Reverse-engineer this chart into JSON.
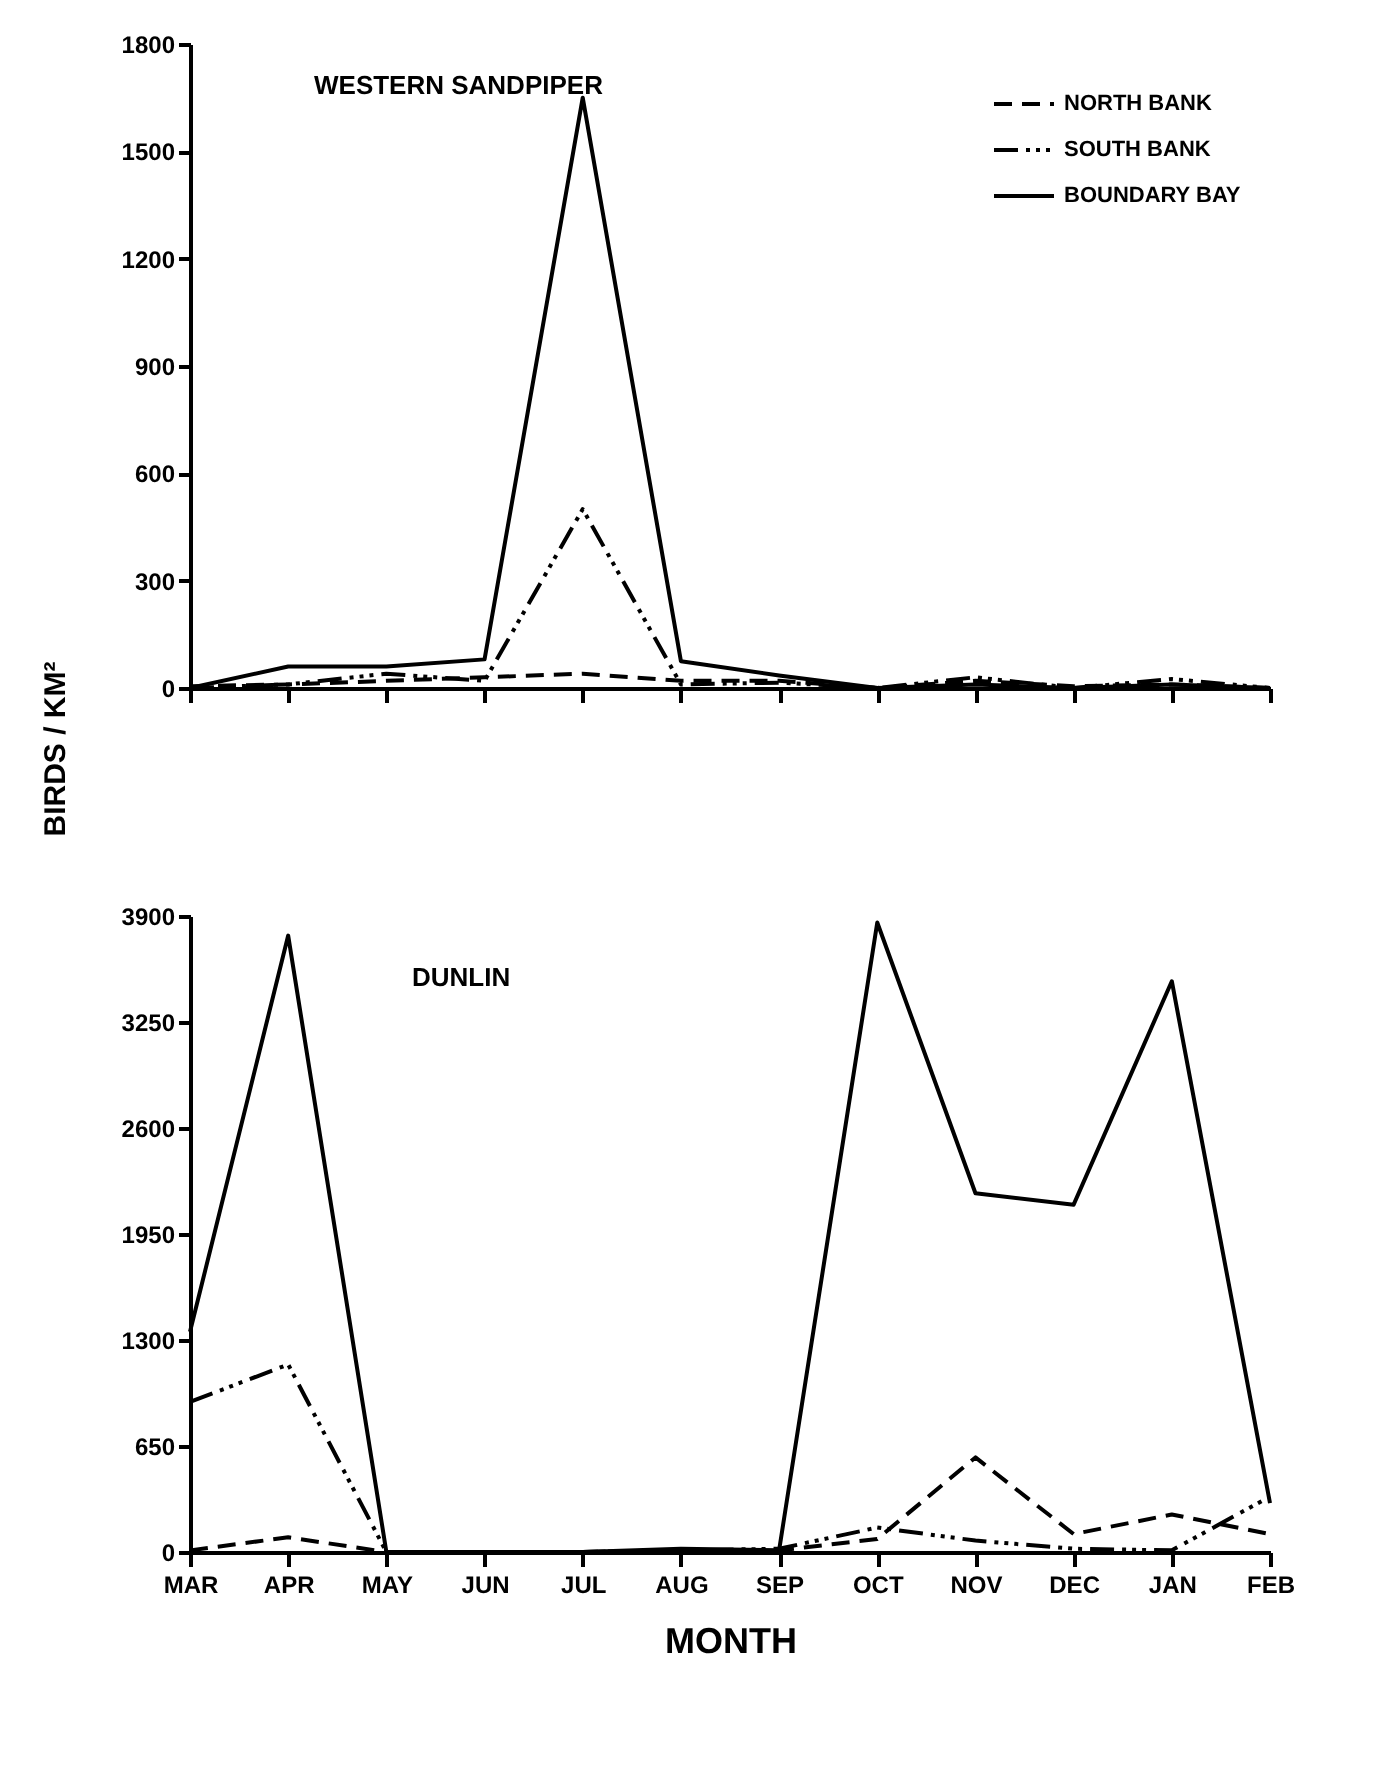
{
  "chart_data": [
    {
      "type": "line",
      "title": "WESTERN SANDPIPER",
      "ylabel": "BIRDS / KM²",
      "categories": [
        null,
        null,
        null,
        null,
        null,
        null,
        null,
        null,
        null,
        null,
        null,
        null
      ],
      "ylim": [
        0,
        1800
      ],
      "yticks": [
        0,
        300,
        600,
        900,
        1200,
        1500,
        1800
      ],
      "tick_labels": "y",
      "legend": "top right",
      "series": [
        {
          "name": "NORTH BANK",
          "color": "#000000",
          "line_style": "dashed",
          "values": [
            5,
            10,
            20,
            30,
            40,
            20,
            20,
            0,
            20,
            5,
            10,
            0
          ]
        },
        {
          "name": "SOUTH BANK",
          "color": "#000000",
          "line_style": "dotted",
          "values": [
            0,
            10,
            40,
            20,
            500,
            10,
            15,
            0,
            30,
            0,
            25,
            0
          ]
        },
        {
          "name": "BOUNDARY BAY",
          "color": "#000000",
          "line_style": "solid",
          "values": [
            0,
            60,
            60,
            80,
            1650,
            75,
            35,
            0,
            10,
            0,
            10,
            0
          ]
        }
      ]
    },
    {
      "type": "line",
      "title": "DUNLIN",
      "xlabel": "MONTH",
      "categories": [
        "MAR",
        "APR",
        "MAY",
        "JUN",
        "JUL",
        "AUG",
        "SEP",
        "OCT",
        "NOV",
        "DEC",
        "JAN",
        "FEB"
      ],
      "ylim": [
        0,
        3900
      ],
      "yticks": [
        0,
        650,
        1300,
        1950,
        2600,
        3250,
        3900
      ],
      "series": [
        {
          "color": "#000000",
          "line_style": "dashed",
          "values": [
            10,
            90,
            0,
            0,
            0,
            10,
            10,
            80,
            580,
            110,
            230,
            110
          ]
        },
        {
          "color": "#000000",
          "line_style": "dotted",
          "values": [
            920,
            1150,
            0,
            0,
            0,
            10,
            20,
            150,
            70,
            20,
            10,
            340
          ]
        },
        {
          "color": "#000000",
          "line_style": "solid",
          "values": [
            1350,
            3780,
            0,
            0,
            0,
            20,
            10,
            3860,
            2200,
            2130,
            3500,
            300
          ]
        }
      ]
    }
  ]
}
